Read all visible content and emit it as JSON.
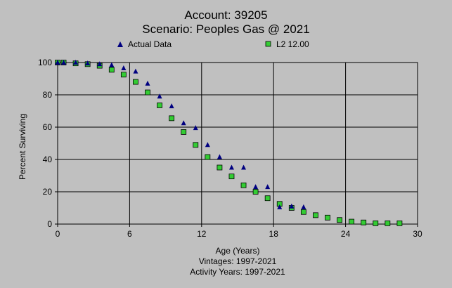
{
  "title": "Account: 39205",
  "subtitle": "Scenario: Peoples Gas @ 2021",
  "footer": {
    "vintages": "Vintages: 1997-2021",
    "activity": "Activity Years: 1997-2021"
  },
  "colors": {
    "background": "#c0c0c0",
    "actual_marker": "#000080",
    "curve_marker_fill": "#33cc33",
    "curve_marker_border": "#000000"
  },
  "chart_data": {
    "type": "scatter",
    "title": "Account: 39205",
    "subtitle": "Scenario: Peoples Gas @ 2021",
    "xlabel": "Age (Years)",
    "ylabel": "Percent Surviving",
    "xlim": [
      0,
      30
    ],
    "ylim": [
      0,
      100
    ],
    "xticks": [
      0,
      6,
      12,
      18,
      24,
      30
    ],
    "yticks": [
      0,
      20,
      40,
      60,
      80,
      100
    ],
    "grid": "vertical and horizontal at major ticks",
    "legend_position": "top",
    "series": [
      {
        "name": "Actual Data",
        "marker": "triangle",
        "color": "#000080",
        "x": [
          0,
          0.5,
          1.5,
          2.5,
          3.5,
          4.5,
          5.5,
          6.5,
          7.5,
          8.5,
          9.5,
          10.5,
          11.5,
          12.5,
          13.5,
          14.5,
          15.5,
          16.5,
          17.5,
          18.5,
          19.5,
          20.5
        ],
        "y": [
          100,
          100,
          100,
          99.5,
          99,
          98.5,
          96.5,
          94.5,
          87,
          79,
          73,
          62.5,
          59.5,
          49,
          41.5,
          35,
          35,
          23,
          23,
          10.5,
          11,
          10.5
        ]
      },
      {
        "name": "L2 12.00",
        "marker": "square",
        "color": "#33cc33",
        "x": [
          0,
          0.5,
          1.5,
          2.5,
          3.5,
          4.5,
          5.5,
          6.5,
          7.5,
          8.5,
          9.5,
          10.5,
          11.5,
          12.5,
          13.5,
          14.5,
          15.5,
          16.5,
          17.5,
          18.5,
          19.5,
          20.5,
          21.5,
          22.5,
          23.5,
          24.5,
          25.5,
          26.5,
          27.5,
          28.5
        ],
        "y": [
          100,
          100,
          99.5,
          99,
          98,
          95.5,
          92.5,
          88,
          81.5,
          73.5,
          65.5,
          57,
          49,
          41.5,
          35,
          29.5,
          24,
          20,
          16,
          12.5,
          10,
          7.5,
          5.5,
          4,
          2.5,
          1.5,
          1,
          0.5,
          0.5,
          0.5
        ]
      }
    ]
  }
}
